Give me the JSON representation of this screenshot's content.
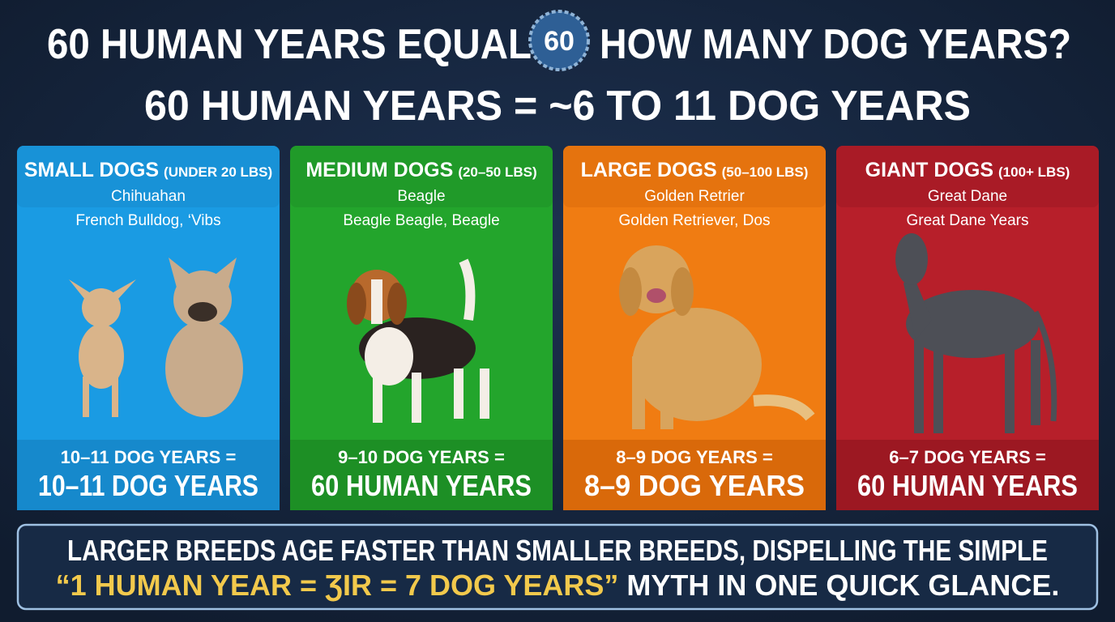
{
  "header": {
    "title_left": "60 HUMAN YEARS EQUAL",
    "badge": "60",
    "title_right": "HOW MANY DOG YEARS?",
    "subtitle": "60 HUMAN YEARS = ~6 TO 11 DOG YEARS"
  },
  "cards": [
    {
      "heading": "SMALL DOGS",
      "weight": "(UNDER 20 LBS)",
      "breed": "Chihuahan",
      "examples": "French Bulldog, ‘Vibs",
      "result_small": "10–11 DOG YEARS =",
      "result_large": "10–11 DOG YEARS"
    },
    {
      "heading": "MEDIUM DOGS",
      "weight": "(20–50 LBS)",
      "breed": "Beagle",
      "examples": "Beagle Beagle, Beagle",
      "result_small": "9–10 DOG YEARS =",
      "result_large": "60 HUMAN YEARS"
    },
    {
      "heading": "LARGE DOGS",
      "weight": "(50–100 LBS)",
      "breed": "Golden Retrier",
      "examples": "Golden Retriever, Dos",
      "result_small": "8–9 DOG YEARS =",
      "result_large": "8–9 DOG YEARS"
    },
    {
      "heading": "GIANT DOGS",
      "weight": "(100+ LBS)",
      "breed": "Great Dane",
      "examples": "Great Dane  Years",
      "result_small": "6–7 DOG YEARS =",
      "result_large": "60 HUMAN YEARS"
    }
  ],
  "footer": {
    "line1": "LARGER BREEDS AGE FASTER THAN SMALLER BREEDS, DISPELLING THE SIMPLE",
    "quote": "“1 HUMAN YEAR = ƷIR = 7 DOG YEARS”",
    "line2": "MYTH IN ONE QUICK GLANCE."
  }
}
